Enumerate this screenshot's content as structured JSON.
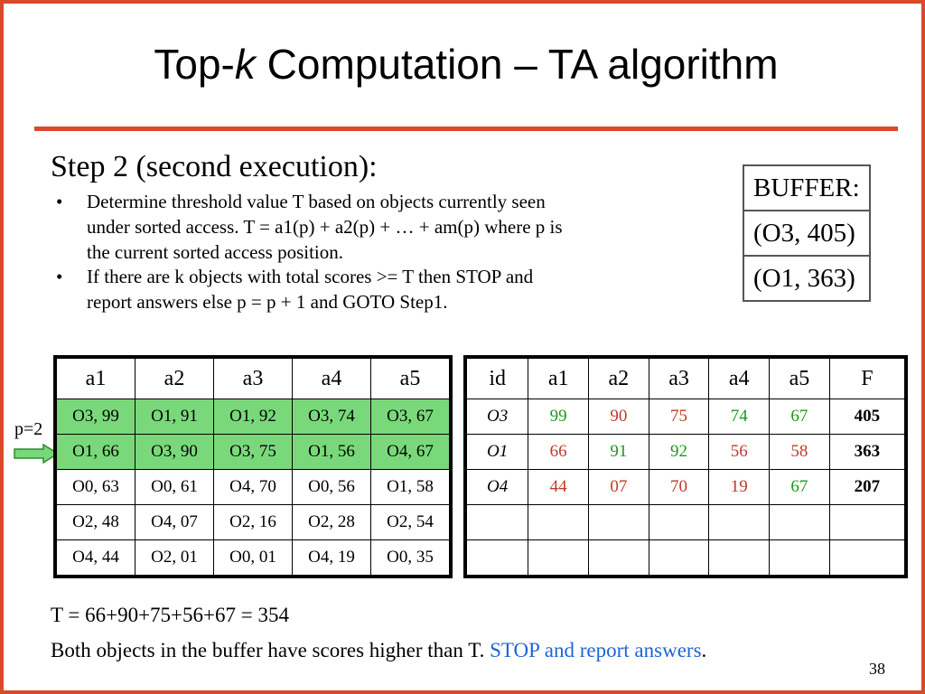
{
  "title": {
    "prefix": "Top-",
    "k": "k",
    "suffix": " Computation – TA algorithm"
  },
  "step_heading": "Step 2 (second execution):",
  "bullets": [
    {
      "line1": "Determine threshold value T based on objects currently seen",
      "line2": "under sorted access. T = a1(p) + a2(p) + … + am(p) where p is",
      "line3": "the current sorted access position."
    },
    {
      "line1": "If there are k objects with total scores >= T then STOP and",
      "line2": "report answers else p = p + 1 and GOTO Step1."
    }
  ],
  "buffer": {
    "header": "BUFFER:",
    "rows": [
      "(O3, 405)",
      "(O1, 363)"
    ]
  },
  "position_marker": "p=2",
  "sorted_lists": {
    "headers": [
      "a1",
      "a2",
      "a3",
      "a4",
      "a5"
    ],
    "rows": [
      [
        "O3, 99",
        "O1, 91",
        "O1, 92",
        "O3, 74",
        "O3, 67"
      ],
      [
        "O1, 66",
        "O3, 90",
        "O3, 75",
        "O1, 56",
        "O4, 67"
      ],
      [
        "O0, 63",
        "O0, 61",
        "O4, 70",
        "O0, 56",
        "O1, 58"
      ],
      [
        "O2, 48",
        "O4, 07",
        "O2, 16",
        "O2, 28",
        "O2, 54"
      ],
      [
        "O4, 44",
        "O2, 01",
        "O0, 01",
        "O4, 19",
        "O0, 35"
      ]
    ]
  },
  "scores_table": {
    "headers": [
      "id",
      "a1",
      "a2",
      "a3",
      "a4",
      "a5",
      "F"
    ],
    "rows": [
      [
        "O3",
        "99",
        "90",
        "75",
        "74",
        "67",
        "405"
      ],
      [
        "O1",
        "66",
        "91",
        "92",
        "56",
        "58",
        "363"
      ],
      [
        "O4",
        "44",
        "07",
        "70",
        "19",
        "67",
        "207"
      ],
      [
        "",
        "",
        "",
        "",
        "",
        "",
        ""
      ],
      [
        "",
        "",
        "",
        "",
        "",
        "",
        ""
      ]
    ]
  },
  "threshold_line": "T = 66+90+75+56+67 = 354",
  "conclusion": {
    "text": "Both objects in the buffer have scores higher than T. ",
    "highlight": "STOP and report answers",
    "end": "."
  },
  "page_number": "38",
  "colors": {
    "accent": "#d94a2a",
    "highlight_row": "#79d97a",
    "green_text": "#1a9a1a",
    "red_text": "#c0392b",
    "blue_text": "#1e64d8"
  }
}
